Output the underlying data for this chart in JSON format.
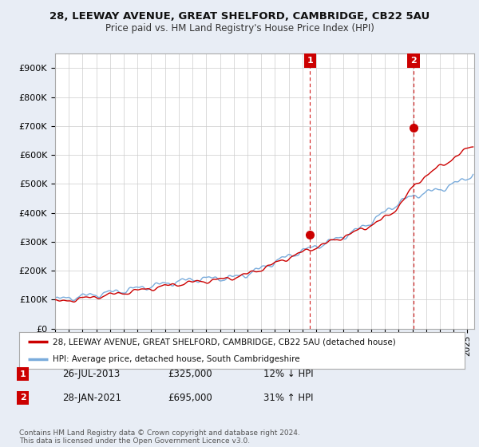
{
  "title": "28, LEEWAY AVENUE, GREAT SHELFORD, CAMBRIDGE, CB22 5AU",
  "subtitle": "Price paid vs. HM Land Registry's House Price Index (HPI)",
  "ylabel_ticks": [
    "£0",
    "£100K",
    "£200K",
    "£300K",
    "£400K",
    "£500K",
    "£600K",
    "£700K",
    "£800K",
    "£900K"
  ],
  "ytick_values": [
    0,
    100000,
    200000,
    300000,
    400000,
    500000,
    600000,
    700000,
    800000,
    900000
  ],
  "ylim": [
    0,
    950000
  ],
  "xlim_start": 1995.0,
  "xlim_end": 2025.5,
  "legend_line1": "28, LEEWAY AVENUE, GREAT SHELFORD, CAMBRIDGE, CB22 5AU (detached house)",
  "legend_line2": "HPI: Average price, detached house, South Cambridgeshire",
  "transaction1_date": "26-JUL-2013",
  "transaction1_price": "£325,000",
  "transaction1_hpi": "12% ↓ HPI",
  "transaction1_x": 2013.56,
  "transaction1_y": 325000,
  "transaction2_date": "28-JAN-2021",
  "transaction2_price": "£695,000",
  "transaction2_hpi": "31% ↑ HPI",
  "transaction2_x": 2021.08,
  "transaction2_y": 695000,
  "footnote": "Contains HM Land Registry data © Crown copyright and database right 2024.\nThis data is licensed under the Open Government Licence v3.0.",
  "line_color_red": "#cc0000",
  "line_color_blue": "#7aacdc",
  "background_color": "#e8edf5",
  "plot_bg_color": "#ffffff",
  "grid_color": "#cccccc",
  "marker_box_color": "#cc0000"
}
